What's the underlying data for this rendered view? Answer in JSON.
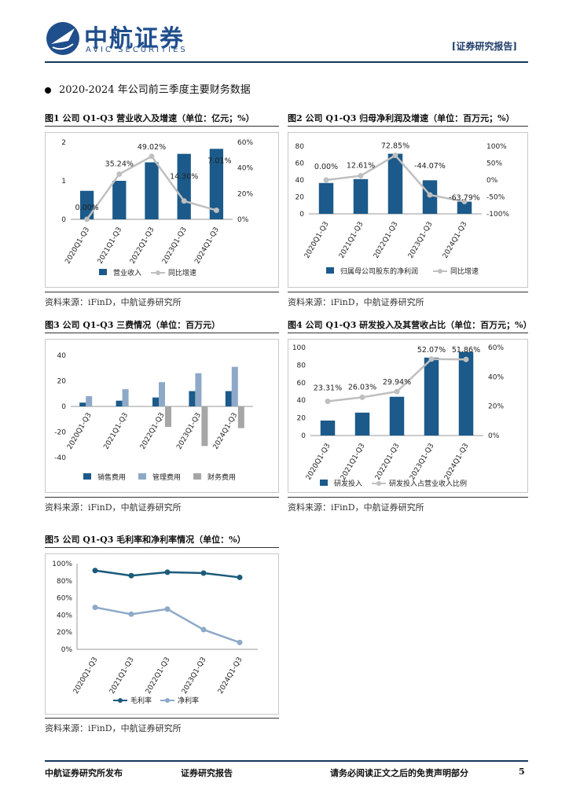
{
  "header": {
    "logo_cn": "中航证券",
    "logo_en": "AVIC SECURITIES",
    "report_tag": "[证券研究报告]"
  },
  "section": {
    "title": "2020-2024 年公司前三季度主要财务数据"
  },
  "figures": [
    {
      "title": "图1 公司 Q1-Q3 营业收入及增速（单位：亿元；%）"
    },
    {
      "title": "图2 公司 Q1-Q3 归母净利润及增速（单位：百万元；%）"
    },
    {
      "title": "图3 公司 Q1-Q3 三费情况（单位：百万元）"
    },
    {
      "title": "图4 公司 Q1-Q3 研发投入及其营收占比（单位：百万元；%）"
    },
    {
      "title": "图5 公司 Q1-Q3 毛利率和净利率情况（单位：%）"
    }
  ],
  "sources": {
    "text": "资料来源：iFinD，中航证券研究所"
  },
  "footer": {
    "left": "中航证券研究所发布",
    "middle": "证券研究报告",
    "right": "请务必阅读正文之后的免责声明部分",
    "page": "5"
  },
  "colors": {
    "navy": "#17375e",
    "bar": "#1b5a8a",
    "line_gray": "#bfbfbf",
    "bar_light": "#8ea9c8",
    "bar_gray": "#a6a6a6",
    "gross_line": "#1b5a7a",
    "net_line": "#8ea9c8"
  },
  "chart_data": [
    {
      "type": "bar",
      "id": "fig1",
      "categories": [
        "2020Q1-Q3",
        "2021Q1-Q3",
        "2022Q1-Q3",
        "2023Q1-Q3",
        "2024Q1-Q3"
      ],
      "series": [
        {
          "name": "营业收入",
          "kind": "bar",
          "axis": "left",
          "values": [
            0.74,
            1.0,
            1.48,
            1.7,
            1.83
          ]
        },
        {
          "name": "同比增速",
          "kind": "line",
          "axis": "right",
          "values": [
            0.0,
            35.24,
            49.02,
            14.3,
            7.01
          ]
        }
      ],
      "data_labels": [
        "0.00%",
        "35.24%",
        "49.02%",
        "14.30%",
        "7.01%"
      ],
      "left_ticks": [
        "0",
        "1",
        "2"
      ],
      "ylim_left": [
        0,
        2
      ],
      "right_ticks": [
        "0%",
        "20%",
        "40%",
        "60%"
      ],
      "ylim_right": [
        0,
        60
      ],
      "legend": [
        "营业收入",
        "同比增速"
      ]
    },
    {
      "type": "bar",
      "id": "fig2",
      "categories": [
        "2020Q1-Q3",
        "2021Q1-Q3",
        "2022Q1-Q3",
        "2023Q1-Q3",
        "2024Q1-Q3"
      ],
      "series": [
        {
          "name": "归属母公司股东的净利润",
          "kind": "bar",
          "axis": "left",
          "values": [
            36.5,
            41.1,
            71.1,
            39.7,
            14.4
          ]
        },
        {
          "name": "同比增速",
          "kind": "line",
          "axis": "right",
          "values": [
            0.0,
            12.61,
            72.85,
            -44.07,
            -63.79
          ]
        }
      ],
      "data_labels": [
        "0.00%",
        "12.61%",
        "72.85%",
        "-44.07%",
        "-63.79%"
      ],
      "left_ticks": [
        "0",
        "20",
        "40",
        "60",
        "80"
      ],
      "ylim_left": [
        0,
        80
      ],
      "right_ticks": [
        "-100%",
        "-50%",
        "0%",
        "50%",
        "100%"
      ],
      "ylim_right": [
        -100,
        100
      ],
      "legend": [
        "归属母公司股东的净利润",
        "同比增速"
      ]
    },
    {
      "type": "bar",
      "id": "fig3",
      "categories": [
        "2020Q1-Q3",
        "2021Q1-Q3",
        "2022Q1-Q3",
        "2023Q1-Q3",
        "2024Q1-Q3"
      ],
      "series": [
        {
          "name": "销售费用",
          "values": [
            3,
            4.5,
            7,
            12,
            12
          ]
        },
        {
          "name": "管理费用",
          "values": [
            8,
            13.5,
            19,
            26,
            31
          ]
        },
        {
          "name": "财务费用",
          "values": [
            0,
            0,
            -16,
            -31,
            -17
          ]
        }
      ],
      "left_ticks": [
        "-40",
        "-20",
        "0",
        "20",
        "40"
      ],
      "ylim": [
        -40,
        40
      ],
      "legend": [
        "销售费用",
        "管理费用",
        "财务费用"
      ]
    },
    {
      "type": "bar",
      "id": "fig4",
      "categories": [
        "2020Q1-Q3",
        "2021Q1-Q3",
        "2022Q1-Q3",
        "2023Q1-Q3",
        "2024Q1-Q3"
      ],
      "series": [
        {
          "name": "研发投入",
          "kind": "bar",
          "axis": "left",
          "values": [
            17,
            26,
            44,
            88.5,
            95
          ]
        },
        {
          "name": "研发投入占营业收入比例",
          "kind": "line",
          "axis": "right",
          "values": [
            23.31,
            26.03,
            29.94,
            52.07,
            51.86
          ]
        }
      ],
      "data_labels": [
        "23.31%",
        "26.03%",
        "29.94%",
        "52.07%",
        "51.86%"
      ],
      "left_ticks": [
        "0",
        "20",
        "40",
        "60",
        "80",
        "100"
      ],
      "ylim_left": [
        0,
        100
      ],
      "right_ticks": [
        "0%",
        "20%",
        "40%",
        "60%"
      ],
      "ylim_right": [
        0,
        60
      ],
      "legend": [
        "研发投入",
        "研发投入占营业收入比例"
      ]
    },
    {
      "type": "line",
      "id": "fig5",
      "categories": [
        "2020Q1-Q3",
        "2021Q1-Q3",
        "2022Q1-Q3",
        "2023Q1-Q3",
        "2024Q1-Q3"
      ],
      "series": [
        {
          "name": "毛利率",
          "values": [
            92,
            86,
            90,
            89,
            84
          ]
        },
        {
          "name": "净利率",
          "values": [
            49,
            41,
            47,
            23,
            8
          ]
        }
      ],
      "left_ticks": [
        "0%",
        "20%",
        "40%",
        "60%",
        "80%",
        "100%"
      ],
      "ylim": [
        0,
        100
      ],
      "legend": [
        "毛利率",
        "净利率"
      ]
    }
  ]
}
